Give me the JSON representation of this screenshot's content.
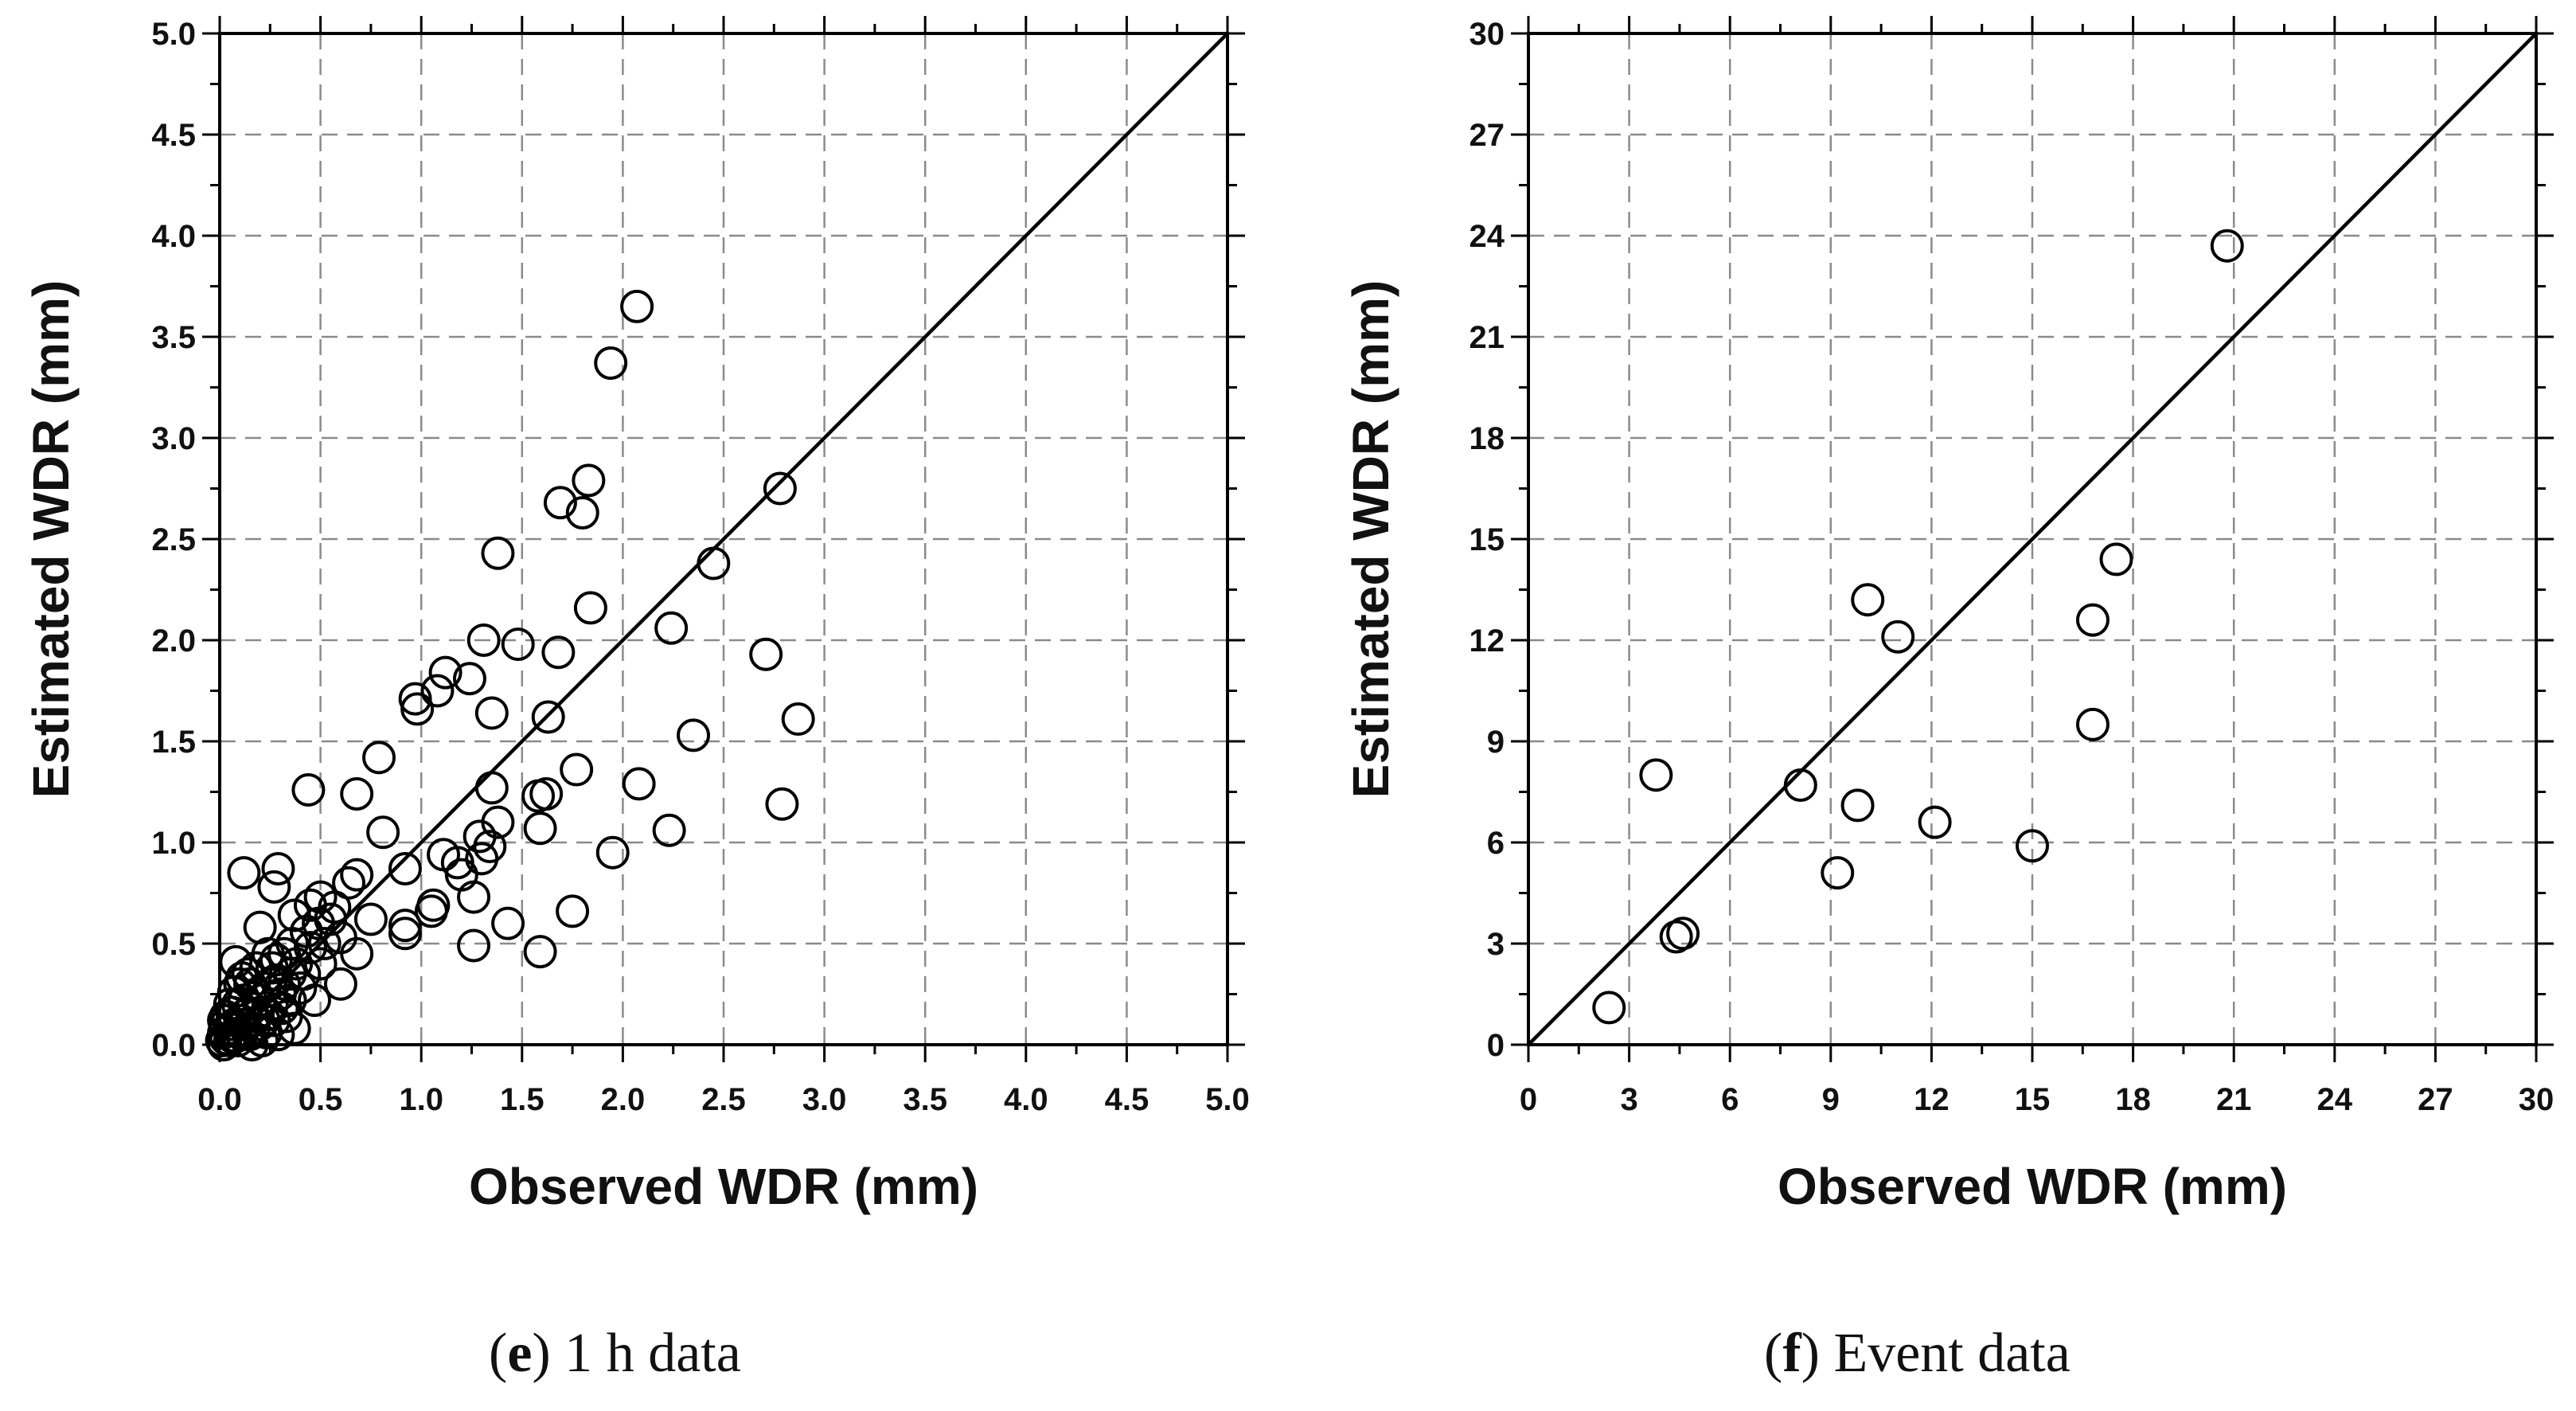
{
  "chart_data": [
    {
      "type": "scatter",
      "panel_letter": "e",
      "caption": " 1 h data",
      "xlabel": "Observed WDR (mm)",
      "ylabel": "Estimated WDR (mm)",
      "xlim": [
        0,
        5
      ],
      "ylim": [
        0,
        5
      ],
      "x_ticks": [
        "0.0",
        "0.5",
        "1.0",
        "1.5",
        "2.0",
        "2.5",
        "3.0",
        "3.5",
        "4.0",
        "4.5",
        "5.0"
      ],
      "y_ticks": [
        "0.0",
        "0.5",
        "1.0",
        "1.5",
        "2.0",
        "2.5",
        "3.0",
        "3.5",
        "4.0",
        "4.5",
        "5.0"
      ],
      "x_tick_values": [
        0,
        0.5,
        1,
        1.5,
        2,
        2.5,
        3,
        3.5,
        4,
        4.5,
        5
      ],
      "y_tick_values": [
        0,
        0.5,
        1,
        1.5,
        2,
        2.5,
        3,
        3.5,
        4,
        4.5,
        5
      ],
      "grid": true,
      "reference_line": "1:1",
      "points": [
        [
          2.07,
          3.65
        ],
        [
          1.94,
          3.37
        ],
        [
          1.83,
          2.79
        ],
        [
          2.78,
          2.75
        ],
        [
          1.69,
          2.68
        ],
        [
          1.8,
          2.63
        ],
        [
          1.38,
          2.43
        ],
        [
          2.45,
          2.38
        ],
        [
          1.84,
          2.16
        ],
        [
          2.24,
          2.06
        ],
        [
          1.31,
          2.0
        ],
        [
          1.48,
          1.98
        ],
        [
          1.68,
          1.94
        ],
        [
          2.71,
          1.93
        ],
        [
          1.12,
          1.84
        ],
        [
          1.24,
          1.81
        ],
        [
          1.08,
          1.75
        ],
        [
          0.97,
          1.71
        ],
        [
          0.98,
          1.66
        ],
        [
          1.35,
          1.64
        ],
        [
          1.63,
          1.62
        ],
        [
          2.87,
          1.61
        ],
        [
          2.35,
          1.53
        ],
        [
          0.79,
          1.42
        ],
        [
          1.77,
          1.36
        ],
        [
          2.08,
          1.29
        ],
        [
          0.44,
          1.26
        ],
        [
          1.35,
          1.27
        ],
        [
          0.68,
          1.24
        ],
        [
          1.58,
          1.23
        ],
        [
          1.62,
          1.24
        ],
        [
          2.79,
          1.19
        ],
        [
          1.38,
          1.1
        ],
        [
          1.59,
          1.07
        ],
        [
          2.23,
          1.06
        ],
        [
          0.81,
          1.05
        ],
        [
          1.29,
          1.03
        ],
        [
          1.34,
          0.98
        ],
        [
          1.95,
          0.95
        ],
        [
          1.11,
          0.94
        ],
        [
          1.18,
          0.9
        ],
        [
          1.3,
          0.92
        ],
        [
          0.92,
          0.87
        ],
        [
          0.29,
          0.87
        ],
        [
          0.12,
          0.85
        ],
        [
          0.68,
          0.84
        ],
        [
          1.2,
          0.84
        ],
        [
          0.64,
          0.8
        ],
        [
          0.27,
          0.78
        ],
        [
          1.26,
          0.73
        ],
        [
          0.5,
          0.73
        ],
        [
          1.06,
          0.69
        ],
        [
          0.45,
          0.69
        ],
        [
          0.57,
          0.68
        ],
        [
          1.75,
          0.66
        ],
        [
          1.05,
          0.66
        ],
        [
          0.37,
          0.64
        ],
        [
          0.75,
          0.62
        ],
        [
          0.55,
          0.62
        ],
        [
          0.92,
          0.59
        ],
        [
          1.43,
          0.6
        ],
        [
          0.2,
          0.58
        ],
        [
          0.92,
          0.55
        ],
        [
          0.6,
          0.53
        ],
        [
          1.26,
          0.49
        ],
        [
          1.59,
          0.46
        ],
        [
          0.68,
          0.45
        ],
        [
          0.32,
          0.45
        ],
        [
          0.28,
          0.42
        ],
        [
          0.08,
          0.41
        ],
        [
          0.5,
          0.4
        ],
        [
          0.6,
          0.3
        ],
        [
          0.47,
          0.22
        ],
        [
          0.37,
          0.08
        ],
        [
          0.35,
          0.35
        ],
        [
          0.32,
          0.3
        ],
        [
          0.3,
          0.25
        ],
        [
          0.28,
          0.32
        ],
        [
          0.26,
          0.2
        ],
        [
          0.25,
          0.3
        ],
        [
          0.24,
          0.15
        ],
        [
          0.22,
          0.28
        ],
        [
          0.22,
          0.12
        ],
        [
          0.2,
          0.22
        ],
        [
          0.2,
          0.1
        ],
        [
          0.18,
          0.25
        ],
        [
          0.17,
          0.08
        ],
        [
          0.16,
          0.18
        ],
        [
          0.15,
          0.3
        ],
        [
          0.14,
          0.06
        ],
        [
          0.13,
          0.15
        ],
        [
          0.12,
          0.22
        ],
        [
          0.11,
          0.05
        ],
        [
          0.1,
          0.12
        ],
        [
          0.09,
          0.2
        ],
        [
          0.08,
          0.04
        ],
        [
          0.07,
          0.1
        ],
        [
          0.06,
          0.16
        ],
        [
          0.05,
          0.02
        ],
        [
          0.05,
          0.08
        ],
        [
          0.04,
          0.12
        ],
        [
          0.03,
          0.03
        ],
        [
          0.02,
          0.06
        ],
        [
          0.02,
          0.0
        ],
        [
          0.01,
          0.02
        ],
        [
          0.03,
          0.14
        ],
        [
          0.06,
          0.04
        ],
        [
          0.09,
          0.02
        ],
        [
          0.12,
          0.1
        ],
        [
          0.15,
          0.05
        ],
        [
          0.19,
          0.15
        ],
        [
          0.23,
          0.06
        ],
        [
          0.27,
          0.12
        ],
        [
          0.31,
          0.18
        ],
        [
          0.35,
          0.22
        ],
        [
          0.4,
          0.28
        ],
        [
          0.42,
          0.35
        ],
        [
          0.38,
          0.4
        ],
        [
          0.45,
          0.48
        ],
        [
          0.52,
          0.5
        ],
        [
          0.1,
          0.3
        ],
        [
          0.14,
          0.35
        ],
        [
          0.18,
          0.38
        ],
        [
          0.24,
          0.45
        ],
        [
          0.05,
          0.2
        ],
        [
          0.02,
          0.12
        ],
        [
          0.33,
          0.14
        ],
        [
          0.29,
          0.05
        ],
        [
          0.21,
          0.02
        ],
        [
          0.16,
          0.0
        ],
        [
          0.07,
          0.26
        ],
        [
          0.11,
          0.33
        ],
        [
          0.26,
          0.38
        ],
        [
          0.36,
          0.5
        ],
        [
          0.43,
          0.56
        ],
        [
          0.49,
          0.6
        ]
      ]
    },
    {
      "type": "scatter",
      "panel_letter": "f",
      "caption": " Event data",
      "xlabel": "Observed WDR (mm)",
      "ylabel": "Estimated WDR (mm)",
      "xlim": [
        0,
        30
      ],
      "ylim": [
        0,
        30
      ],
      "x_ticks": [
        "0",
        "3",
        "6",
        "9",
        "12",
        "15",
        "18",
        "21",
        "24",
        "27",
        "30"
      ],
      "y_ticks": [
        "0",
        "3",
        "6",
        "9",
        "12",
        "15",
        "18",
        "21",
        "24",
        "27",
        "30"
      ],
      "x_tick_values": [
        0,
        3,
        6,
        9,
        12,
        15,
        18,
        21,
        24,
        27,
        30
      ],
      "y_tick_values": [
        0,
        3,
        6,
        9,
        12,
        15,
        18,
        21,
        24,
        27,
        30
      ],
      "grid": true,
      "reference_line": "1:1",
      "points": [
        [
          2.4,
          1.1
        ],
        [
          3.8,
          8.0
        ],
        [
          4.4,
          3.2
        ],
        [
          4.6,
          3.3
        ],
        [
          8.1,
          7.7
        ],
        [
          9.2,
          5.1
        ],
        [
          9.8,
          7.1
        ],
        [
          10.1,
          13.2
        ],
        [
          11.0,
          12.1
        ],
        [
          12.1,
          6.6
        ],
        [
          15.0,
          5.9
        ],
        [
          16.8,
          9.5
        ],
        [
          16.8,
          12.6
        ],
        [
          17.5,
          14.4
        ],
        [
          20.8,
          23.7
        ]
      ]
    }
  ]
}
